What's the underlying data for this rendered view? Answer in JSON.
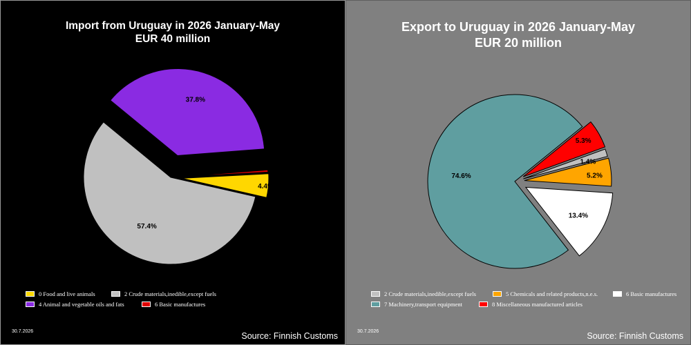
{
  "chart_data": [
    {
      "type": "pie",
      "title": "Import from Uruguay in 2026 January-May",
      "subtitle": "EUR    40 million",
      "date": "30.7.2026",
      "source": "Source: Finnish Customs",
      "background": "#000000",
      "slices": [
        {
          "label": "0 Food and live animals",
          "value": 4.4,
          "display": "4.4%",
          "color": "#ffd700"
        },
        {
          "label": "2 Crude materials,inedible,except fuels",
          "value": 57.4,
          "display": "57.4%",
          "color": "#c0c0c0"
        },
        {
          "label": "4 Animal and vegetable oils and fats",
          "value": 37.8,
          "display": "37.8%",
          "color": "#8a2be2"
        },
        {
          "label": "6 Basic manufactures",
          "value": 0.4,
          "display": "0.4%",
          "color": "#e00000"
        }
      ]
    },
    {
      "type": "pie",
      "title": "Export to Uruguay in 2026 January-May",
      "subtitle": "EUR    20 million",
      "date": "30.7.2026",
      "source": "Source: Finnish Customs",
      "background": "#808080",
      "slices": [
        {
          "label": "2 Crude materials,inedible,except fuels",
          "value": 1.4,
          "display": "1.4%",
          "color": "#c0c0c0"
        },
        {
          "label": "5 Chemicals and related products,n.e.s.",
          "value": 5.2,
          "display": "5.2%",
          "color": "#ffa500"
        },
        {
          "label": "6 Basic manufactures",
          "value": 13.4,
          "display": "13.4%",
          "color": "#ffffff"
        },
        {
          "label": "7 Machinery,transport equipment",
          "value": 74.6,
          "display": "74.6%",
          "color": "#5f9ea0"
        },
        {
          "label": "8 Miscellaneous manufactured articles",
          "value": 5.3,
          "display": "5.3%",
          "color": "#ff0000"
        }
      ]
    }
  ]
}
